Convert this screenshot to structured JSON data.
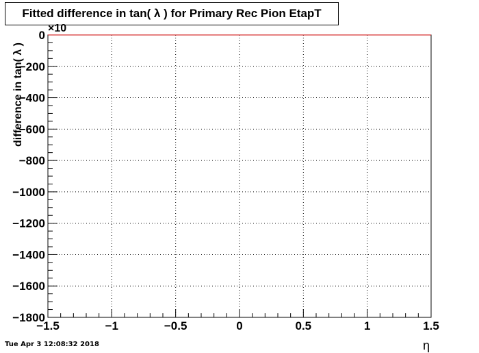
{
  "chart_data": {
    "type": "line",
    "title": "Fitted difference in tan( λ ) for Primary Rec Pion EtapT",
    "xlabel": "η",
    "ylabel": "difference in tan( λ )",
    "y_exponent_label": "×10",
    "xlim": [
      -1.5,
      1.5
    ],
    "ylim": [
      -1800,
      0
    ],
    "x_ticks": [
      -1.5,
      -1,
      -0.5,
      0,
      0.5,
      1,
      1.5
    ],
    "x_tick_labels": [
      "−1.5",
      "−1",
      "−0.5",
      "0",
      "0.5",
      "1",
      "1.5"
    ],
    "y_ticks": [
      0,
      -200,
      -400,
      -600,
      -800,
      -1000,
      -1200,
      -1400,
      -1600,
      -1800
    ],
    "y_tick_labels": [
      "0",
      "−200",
      "−400",
      "−600",
      "−800",
      "−1000",
      "−1200",
      "−1400",
      "−1600",
      "−1800"
    ],
    "grid": true,
    "series": [
      {
        "color": "#cc0000",
        "x": [
          -1.5,
          1.5
        ],
        "y": [
          0,
          0
        ]
      }
    ]
  },
  "footer": {
    "timestamp": "Tue Apr  3 12:08:32 2018"
  }
}
